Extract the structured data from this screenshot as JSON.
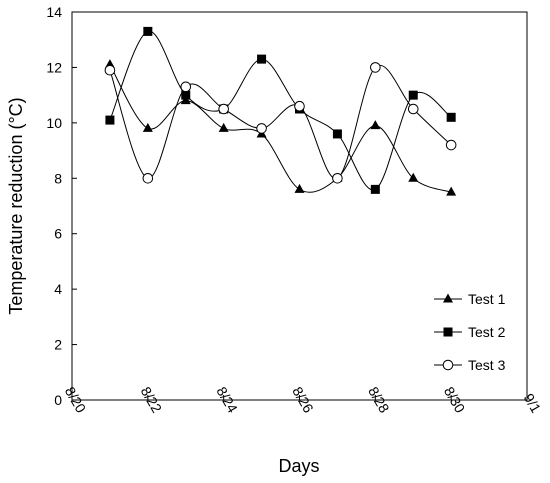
{
  "chart_data": {
    "type": "line",
    "xlabel": "Days",
    "ylabel": "Temperature reduction (°C)",
    "xlim": [
      "8/20",
      "9/1"
    ],
    "ylim": [
      0,
      14
    ],
    "x_ticks": [
      "8/20",
      "8/22",
      "8/24",
      "8/26",
      "8/28",
      "8/30",
      "9/1"
    ],
    "y_ticks": [
      0,
      2,
      4,
      6,
      8,
      10,
      12,
      14
    ],
    "grid": false,
    "legend_position": "bottom-right",
    "x": [
      "8/21",
      "8/22",
      "8/23",
      "8/24",
      "8/25",
      "8/26",
      "8/27",
      "8/28",
      "8/29",
      "8/30"
    ],
    "series": [
      {
        "name": "Test 1",
        "marker": "filled-triangle",
        "values": [
          12.1,
          9.8,
          10.8,
          9.8,
          9.6,
          7.6,
          8.0,
          9.9,
          8.0,
          7.5
        ]
      },
      {
        "name": "Test 2",
        "marker": "filled-square",
        "values": [
          10.1,
          13.3,
          11.0,
          10.5,
          12.3,
          10.5,
          9.6,
          7.6,
          11.0,
          10.2
        ]
      },
      {
        "name": "Test 3",
        "marker": "open-circle",
        "values": [
          11.9,
          8.0,
          11.3,
          10.5,
          9.8,
          10.6,
          8.0,
          12.0,
          10.5,
          9.2
        ]
      }
    ]
  }
}
